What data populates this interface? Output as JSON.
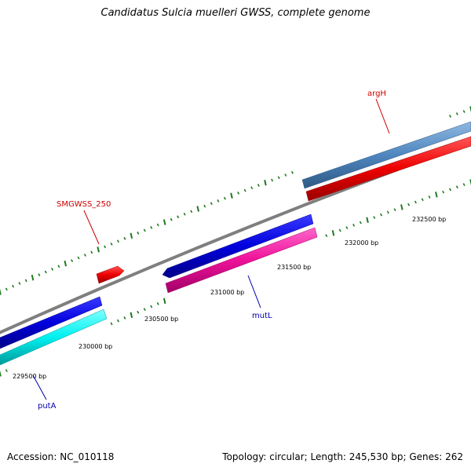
{
  "title": "Candidatus Sulcia muelleri GWSS, complete genome",
  "footer": {
    "accession": "Accession: NC_010118",
    "summary": "Topology: circular; Length: 245,530 bp; Genes: 262"
  },
  "colors": {
    "backbone": "#7f7f7f",
    "tick": "#1f7a1f",
    "gene_label_red": "#cc0000",
    "gene_label_blue": "#0000aa"
  },
  "positions": [
    {
      "label": "229500 bp",
      "bp": 229500
    },
    {
      "label": "230000 bp",
      "bp": 230000
    },
    {
      "label": "230500 bp",
      "bp": 230500
    },
    {
      "label": "231000 bp",
      "bp": 231000
    },
    {
      "label": "231500 bp",
      "bp": 231500
    },
    {
      "label": "232000 bp",
      "bp": 232000
    },
    {
      "label": "232500 bp",
      "bp": 232500
    }
  ],
  "genes": [
    {
      "name": "putA",
      "label_color": "blue"
    },
    {
      "name": "SMGWSS_250",
      "label_color": "red"
    },
    {
      "name": "mutL",
      "label_color": "blue"
    },
    {
      "name": "argH",
      "label_color": "red"
    }
  ]
}
